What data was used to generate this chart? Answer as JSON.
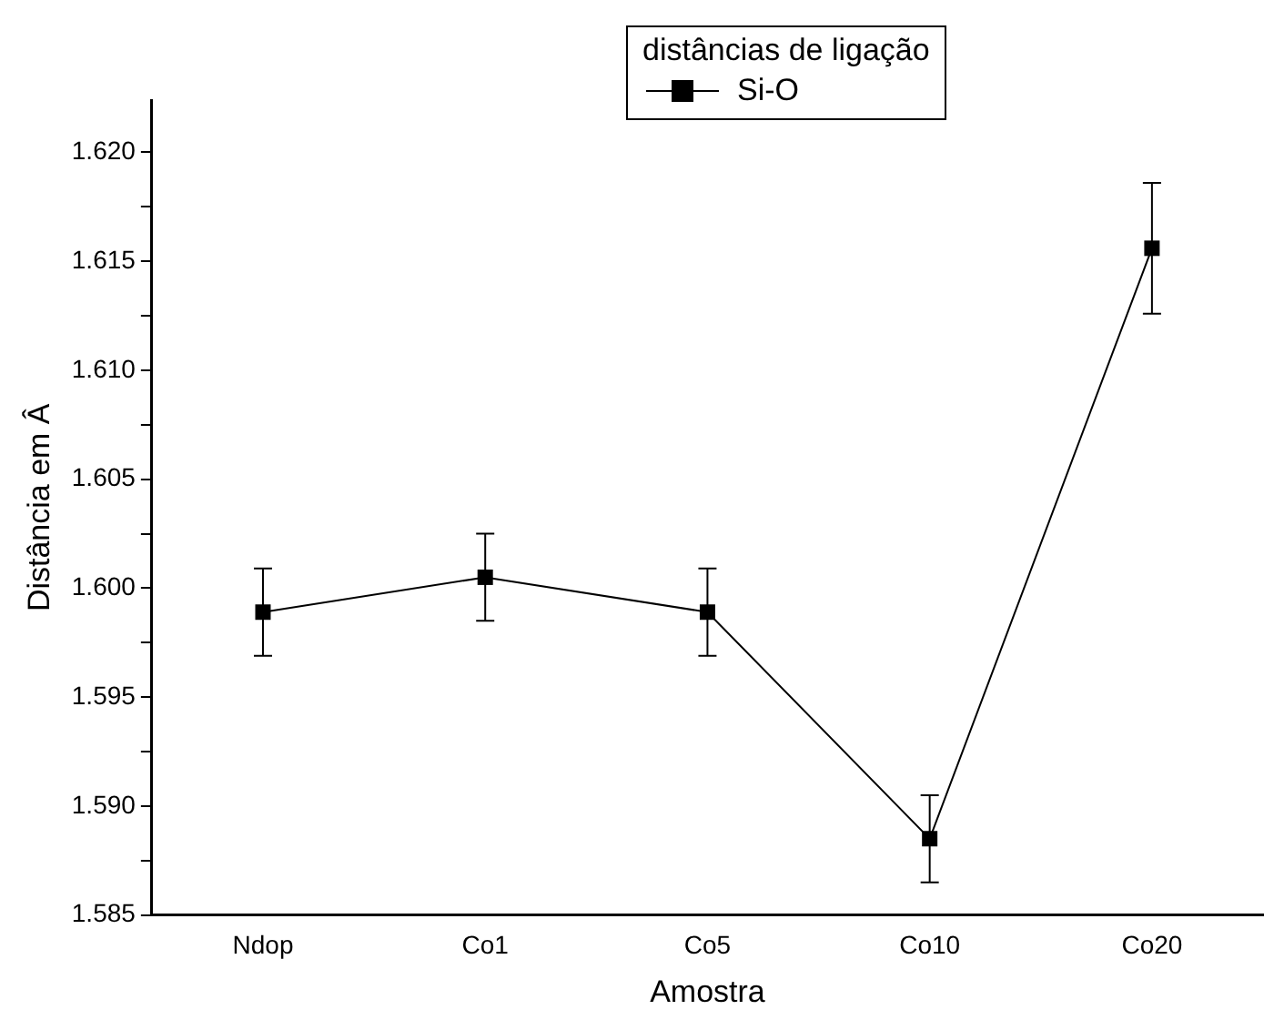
{
  "chart_data": {
    "type": "line",
    "xlabel": "Amostra",
    "ylabel": "Distância em Â",
    "legend_title": "distâncias de ligação",
    "categories": [
      "Ndop",
      "Co1",
      "Co5",
      "Co10",
      "Co20"
    ],
    "series": [
      {
        "name": "Si-O",
        "color": "#000000",
        "values": [
          1.5989,
          1.6005,
          1.5989,
          1.5885,
          1.6156
        ],
        "errors": [
          0.002,
          0.002,
          0.002,
          0.002,
          0.003
        ]
      }
    ],
    "ylim": [
      1.585,
      1.6224
    ],
    "yticks": [
      1.585,
      {
        "value": 1.5875,
        "label": null
      },
      {
        "value": 1.59,
        "label": "1.590"
      },
      {
        "value": 1.5925,
        "label": null
      },
      1.595,
      {
        "value": 1.5975,
        "label": null
      },
      {
        "value": 1.6,
        "label": "1.600"
      },
      {
        "value": 1.6025,
        "label": null
      },
      1.605,
      {
        "value": 1.6075,
        "label": null
      },
      {
        "value": 1.61,
        "label": "1.610"
      },
      {
        "value": 1.6125,
        "label": null
      },
      1.615,
      {
        "value": 1.6175,
        "label": null
      },
      {
        "value": 1.62,
        "label": "1.620"
      }
    ],
    "marker": "square",
    "line_style": "solid",
    "grid": false,
    "legend": "top right"
  }
}
